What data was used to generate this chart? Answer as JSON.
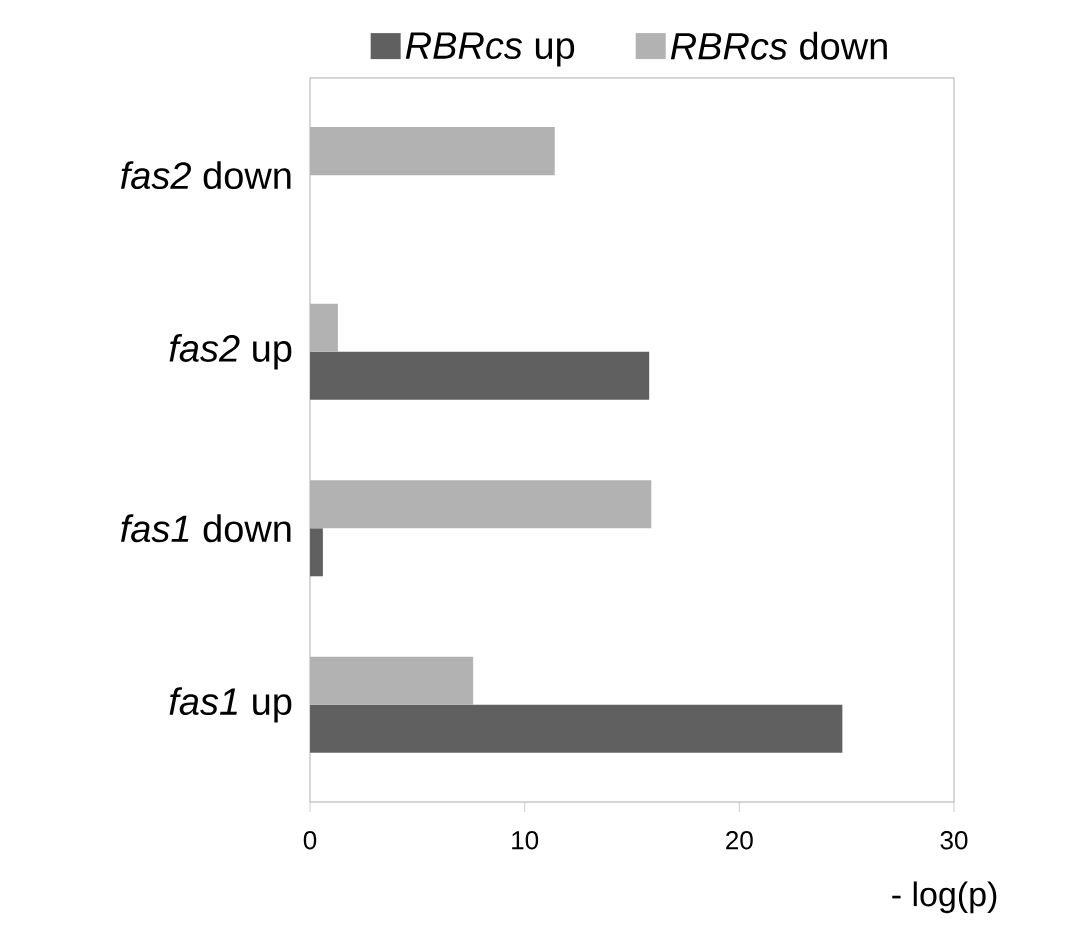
{
  "chart_data": {
    "type": "bar",
    "orientation": "horizontal",
    "xlabel": "- log(p)",
    "categories": [
      "*fas2* down",
      "*fas2* up",
      "*fas1* down",
      "*fas1* up"
    ],
    "series": [
      {
        "name": "*RBRcs* up",
        "color": "#606060",
        "values": [
          0,
          15.8,
          0.6,
          24.8
        ]
      },
      {
        "name": "*RBRcs* down",
        "color": "#b2b2b2",
        "values": [
          11.4,
          1.3,
          15.9,
          7.6
        ]
      }
    ],
    "xlim": [
      0,
      30
    ],
    "xticks": [
      0,
      10,
      20,
      30
    ],
    "legend": "top",
    "grid": false
  }
}
